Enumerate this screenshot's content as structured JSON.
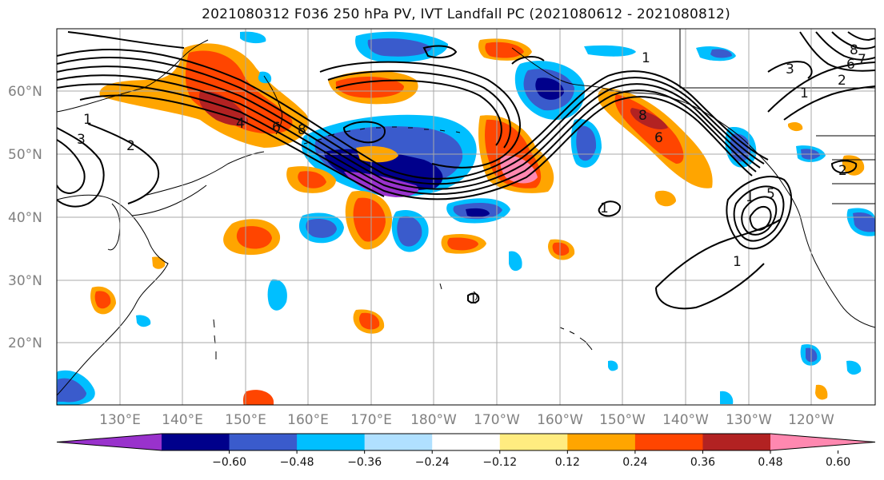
{
  "title": "2021080312 F036 250 hPa PV, IVT Landfall PC (2021080612 - 2021080812)",
  "lat_labels": [
    "60°N",
    "50°N",
    "40°N",
    "30°N",
    "20°N"
  ],
  "lon_labels": [
    "130°E",
    "140°E",
    "150°E",
    "160°E",
    "170°E",
    "180°W",
    "170°W",
    "160°W",
    "150°W",
    "140°W",
    "130°W",
    "120°W"
  ],
  "colorbar": {
    "colors": [
      "#9932cc",
      "#00008b",
      "#3a5bcc",
      "#00bfff",
      "#b0e0ff",
      "#ffffff",
      "#ffec80",
      "#ffa500",
      "#ff4500",
      "#b22222",
      "#ff88b0"
    ],
    "tick_labels": [
      "−0.60",
      "−0.48",
      "−0.36",
      "−0.24",
      "−0.12",
      "0.12",
      "0.24",
      "0.36",
      "0.48",
      "0.60"
    ]
  },
  "contour_labels": [
    "1",
    "3",
    "2",
    "4",
    "6",
    "8",
    "1",
    "8",
    "6",
    "1",
    "1",
    "5",
    "1",
    "1",
    "1",
    "2",
    "3",
    "6",
    "7",
    "8",
    "2"
  ]
}
